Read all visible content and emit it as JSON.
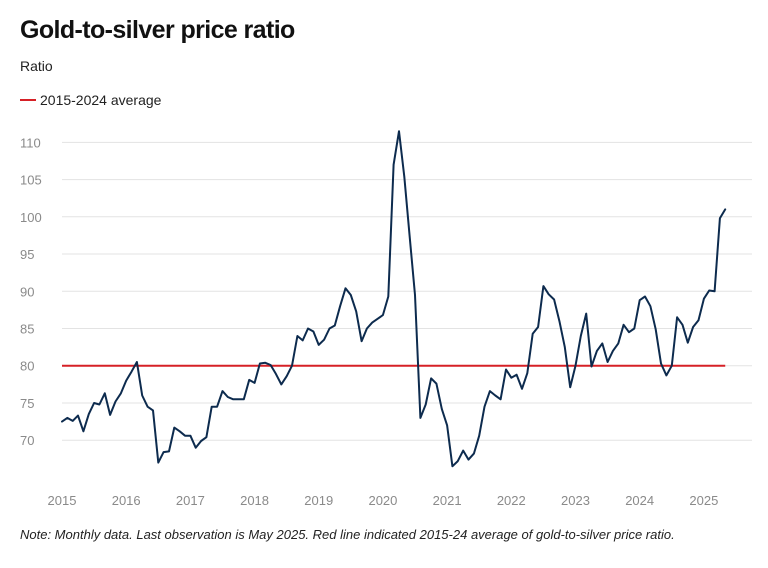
{
  "chart_data": {
    "type": "line",
    "title": "Gold-to-silver price ratio",
    "ylabel": "Ratio",
    "xlabel": "",
    "ylim": [
      66,
      113
    ],
    "xlim": [
      2015.0,
      2025.75
    ],
    "yticks": [
      70,
      75,
      80,
      85,
      90,
      95,
      100,
      105,
      110
    ],
    "xticks": [
      "2015",
      "2016",
      "2017",
      "2018",
      "2019",
      "2020",
      "2021",
      "2022",
      "2023",
      "2024",
      "2025"
    ],
    "grid": "horizontal",
    "legend_position": "top-left",
    "legend": [
      {
        "label": "2015-2024 average",
        "color": "#d62026"
      }
    ],
    "average": {
      "value": 80,
      "x_start": 2015.0,
      "x_end": 2025.333
    },
    "series": [
      {
        "color": "#0d2b4e",
        "x": [
          2015.0,
          2015.083,
          2015.167,
          2015.25,
          2015.333,
          2015.417,
          2015.5,
          2015.583,
          2015.667,
          2015.75,
          2015.833,
          2015.917,
          2016.0,
          2016.083,
          2016.167,
          2016.25,
          2016.333,
          2016.417,
          2016.5,
          2016.583,
          2016.667,
          2016.75,
          2016.833,
          2016.917,
          2017.0,
          2017.083,
          2017.167,
          2017.25,
          2017.333,
          2017.417,
          2017.5,
          2017.583,
          2017.667,
          2017.75,
          2017.833,
          2017.917,
          2018.0,
          2018.083,
          2018.167,
          2018.25,
          2018.333,
          2018.417,
          2018.5,
          2018.583,
          2018.667,
          2018.75,
          2018.833,
          2018.917,
          2019.0,
          2019.083,
          2019.167,
          2019.25,
          2019.333,
          2019.417,
          2019.5,
          2019.583,
          2019.667,
          2019.75,
          2019.833,
          2019.917,
          2020.0,
          2020.083,
          2020.167,
          2020.25,
          2020.333,
          2020.417,
          2020.5,
          2020.583,
          2020.667,
          2020.75,
          2020.833,
          2020.917,
          2021.0,
          2021.083,
          2021.167,
          2021.25,
          2021.333,
          2021.417,
          2021.5,
          2021.583,
          2021.667,
          2021.75,
          2021.833,
          2021.917,
          2022.0,
          2022.083,
          2022.167,
          2022.25,
          2022.333,
          2022.417,
          2022.5,
          2022.583,
          2022.667,
          2022.75,
          2022.833,
          2022.917,
          2023.0,
          2023.083,
          2023.167,
          2023.25,
          2023.333,
          2023.417,
          2023.5,
          2023.583,
          2023.667,
          2023.75,
          2023.833,
          2023.917,
          2024.0,
          2024.083,
          2024.167,
          2024.25,
          2024.333,
          2024.417,
          2024.5,
          2024.583,
          2024.667,
          2024.75,
          2024.833,
          2024.917,
          2025.0,
          2025.083,
          2025.167,
          2025.25,
          2025.333
        ],
        "y": [
          72.5,
          73.0,
          72.6,
          73.3,
          71.2,
          73.5,
          75.0,
          74.8,
          76.3,
          73.4,
          75.2,
          76.3,
          78.0,
          79.2,
          80.5,
          76.0,
          74.5,
          74.0,
          67.0,
          68.4,
          68.5,
          71.7,
          71.2,
          70.6,
          70.6,
          69.0,
          69.9,
          70.4,
          74.5,
          74.5,
          76.6,
          75.8,
          75.5,
          75.5,
          75.5,
          78.1,
          77.7,
          80.3,
          80.4,
          80.1,
          78.9,
          77.5,
          78.6,
          80.0,
          84.0,
          83.4,
          85.0,
          84.6,
          82.8,
          83.5,
          85.0,
          85.4,
          88.0,
          90.4,
          89.5,
          87.3,
          83.3,
          85.0,
          85.8,
          86.3,
          86.8,
          89.3,
          107.0,
          111.5,
          105.4,
          97.3,
          89.5,
          73.0,
          74.8,
          78.3,
          77.6,
          74.2,
          72.0,
          66.5,
          67.2,
          68.6,
          67.4,
          68.2,
          70.6,
          74.5,
          76.6,
          76.0,
          75.5,
          79.5,
          78.4,
          78.8,
          76.9,
          79.0,
          84.3,
          85.2,
          90.7,
          89.6,
          88.9,
          86.0,
          82.5,
          77.1,
          80.0,
          84.0,
          87.0,
          79.9,
          82.0,
          83.0,
          80.5,
          82.0,
          83.0,
          85.5,
          84.5,
          85.0,
          88.8,
          89.3,
          88.0,
          84.9,
          80.3,
          78.7,
          80.0,
          86.5,
          85.5,
          83.1,
          85.2,
          86.1,
          89.0,
          90.1,
          90.0,
          99.8,
          101.0
        ]
      }
    ]
  },
  "note": "Note: Monthly data. Last observation is May 2025. Red line indicated 2015-24 average of gold-to-silver price ratio."
}
